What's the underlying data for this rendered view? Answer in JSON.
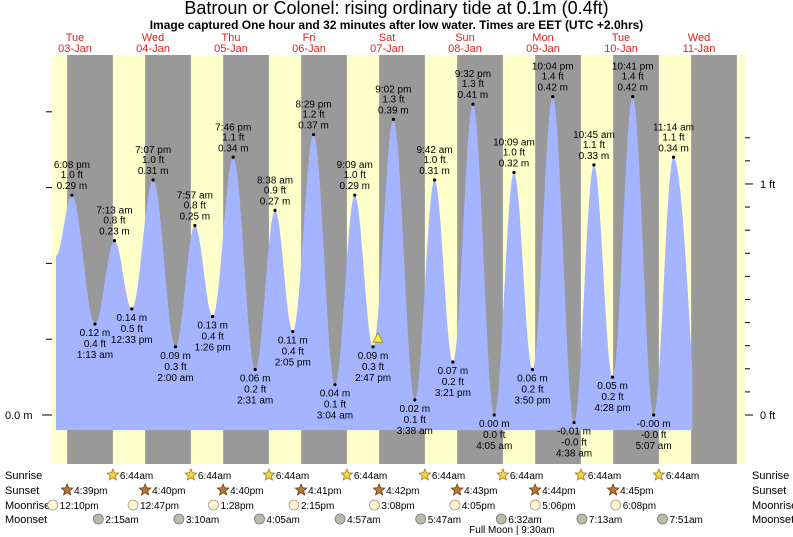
{
  "title": "Batroun or Colonel: rising  ordinary tide at 0.1m (0.4ft)",
  "subtitle": "Image captured One hour and 32 minutes after low water. Times are EET (UTC +2.0hrs)",
  "colors": {
    "day": "#ffffcc",
    "night": "#999999",
    "tide_fill": "#a4b4ff",
    "day_label": "#e0201a"
  },
  "chart_data": {
    "type": "area",
    "title": "Batroun or Colonel: rising  ordinary tide at 0.1m (0.4ft)",
    "ylabel_left": [
      "0.0 m"
    ],
    "ylabel_right": [
      "0 ft",
      "1 ft"
    ],
    "days": [
      {
        "weekday": "Tue",
        "date": "03-Jan"
      },
      {
        "weekday": "Wed",
        "date": "04-Jan"
      },
      {
        "weekday": "Thu",
        "date": "05-Jan"
      },
      {
        "weekday": "Fri",
        "date": "06-Jan"
      },
      {
        "weekday": "Sat",
        "date": "07-Jan"
      },
      {
        "weekday": "Sun",
        "date": "08-Jan"
      },
      {
        "weekday": "Mon",
        "date": "09-Jan"
      },
      {
        "weekday": "Tue",
        "date": "10-Jan"
      },
      {
        "weekday": "Wed",
        "date": "11-Jan"
      }
    ],
    "tides": [
      {
        "type": "high",
        "time": "6:08 pm",
        "ft": "1.0 ft",
        "m": "0.29 m",
        "h": 18.13,
        "value_m": 0.29
      },
      {
        "type": "low",
        "time": "1:13 am",
        "ft": "0.4 ft",
        "m": "0.12 m",
        "h": 25.22,
        "value_m": 0.12
      },
      {
        "type": "high",
        "time": "7:13 am",
        "ft": "0.8 ft",
        "m": "0.23 m",
        "h": 31.22,
        "value_m": 0.23
      },
      {
        "type": "low",
        "time": "12:33 pm",
        "ft": "0.5 ft",
        "m": "0.14 m",
        "h": 36.55,
        "value_m": 0.14
      },
      {
        "type": "high",
        "time": "7:07 pm",
        "ft": "1.0 ft",
        "m": "0.31 m",
        "h": 43.12,
        "value_m": 0.31
      },
      {
        "type": "low",
        "time": "2:00 am",
        "ft": "0.3 ft",
        "m": "0.09 m",
        "h": 50.0,
        "value_m": 0.09
      },
      {
        "type": "high",
        "time": "7:57 am",
        "ft": "0.8 ft",
        "m": "0.25 m",
        "h": 55.95,
        "value_m": 0.25
      },
      {
        "type": "low",
        "time": "1:26 pm",
        "ft": "0.4 ft",
        "m": "0.13 m",
        "h": 61.43,
        "value_m": 0.13
      },
      {
        "type": "high",
        "time": "7:46 pm",
        "ft": "1.1 ft",
        "m": "0.34 m",
        "h": 67.77,
        "value_m": 0.34
      },
      {
        "type": "low",
        "time": "2:31 am",
        "ft": "0.2 ft",
        "m": "0.06 m",
        "h": 74.52,
        "value_m": 0.06
      },
      {
        "type": "high",
        "time": "8:38 am",
        "ft": "0.9 ft",
        "m": "0.27 m",
        "h": 80.63,
        "value_m": 0.27
      },
      {
        "type": "low",
        "time": "2:05 pm",
        "ft": "0.4 ft",
        "m": "0.11 m",
        "h": 86.08,
        "value_m": 0.11
      },
      {
        "type": "high",
        "time": "8:29 pm",
        "ft": "1.2 ft",
        "m": "0.37 m",
        "h": 92.48,
        "value_m": 0.37
      },
      {
        "type": "low",
        "time": "3:04 am",
        "ft": "0.1 ft",
        "m": "0.04 m",
        "h": 99.07,
        "value_m": 0.04
      },
      {
        "type": "high",
        "time": "9:09 am",
        "ft": "1.0 ft",
        "m": "0.29 m",
        "h": 105.15,
        "value_m": 0.29
      },
      {
        "type": "low",
        "time": "2:47 pm",
        "ft": "0.3 ft",
        "m": "0.09 m",
        "h": 110.78,
        "value_m": 0.09
      },
      {
        "type": "high",
        "time": "9:02 pm",
        "ft": "1.3 ft",
        "m": "0.39 m",
        "h": 117.03,
        "value_m": 0.39
      },
      {
        "type": "low",
        "time": "3:38 am",
        "ft": "0.1 ft",
        "m": "0.02 m",
        "h": 123.63,
        "value_m": 0.02
      },
      {
        "type": "high",
        "time": "9:42 am",
        "ft": "1.0 ft",
        "m": "0.31 m",
        "h": 129.7,
        "value_m": 0.31
      },
      {
        "type": "low",
        "time": "3:21 pm",
        "ft": "0.2 ft",
        "m": "0.07 m",
        "h": 135.35,
        "value_m": 0.07
      },
      {
        "type": "high",
        "time": "9:32 pm",
        "ft": "1.3 ft",
        "m": "0.41 m",
        "h": 141.53,
        "value_m": 0.41
      },
      {
        "type": "low",
        "time": "4:05 am",
        "ft": "0.0 ft",
        "m": "0.00 m",
        "h": 148.08,
        "value_m": 0.0
      },
      {
        "type": "high",
        "time": "10:09 am",
        "ft": "1.0 ft",
        "m": "0.32 m",
        "h": 154.15,
        "value_m": 0.32
      },
      {
        "type": "low",
        "time": "3:50 pm",
        "ft": "0.2 ft",
        "m": "0.06 m",
        "h": 159.83,
        "value_m": 0.06
      },
      {
        "type": "high",
        "time": "10:04 pm",
        "ft": "1.4 ft",
        "m": "0.42 m",
        "h": 166.07,
        "value_m": 0.42
      },
      {
        "type": "low",
        "time": "4:38 am",
        "ft": "-0.0 ft",
        "m": "-0.01 m",
        "h": 172.63,
        "value_m": -0.01
      },
      {
        "type": "high",
        "time": "10:45 am",
        "ft": "1.1 ft",
        "m": "0.33 m",
        "h": 178.75,
        "value_m": 0.33
      },
      {
        "type": "low",
        "time": "4:28 pm",
        "ft": "0.2 ft",
        "m": "0.05 m",
        "h": 184.47,
        "value_m": 0.05
      },
      {
        "type": "high",
        "time": "10:41 pm",
        "ft": "1.4 ft",
        "m": "0.42 m",
        "h": 190.68,
        "value_m": 0.42
      },
      {
        "type": "low",
        "time": "5:07 am",
        "ft": "-0.0 ft",
        "m": "-0.00 m",
        "h": 197.12,
        "value_m": 0.0
      },
      {
        "type": "high",
        "time": "11:14 am",
        "ft": "1.1 ft",
        "m": "0.34 m",
        "h": 203.23,
        "value_m": 0.34
      }
    ],
    "current": {
      "h": 112.3,
      "value_m": 0.1
    }
  },
  "rows": {
    "sunrise_label": "Sunrise",
    "sunset_label": "Sunset",
    "moonrise_label": "Moonrise",
    "moonset_label": "Moonset",
    "sunrise": [
      "6:44am",
      "6:44am",
      "6:44am",
      "6:44am",
      "6:44am",
      "6:44am",
      "6:44am",
      "6:44am"
    ],
    "sunset": [
      "4:39pm",
      "4:40pm",
      "4:40pm",
      "4:41pm",
      "4:42pm",
      "4:43pm",
      "4:44pm",
      "4:45pm"
    ],
    "moonrise": [
      "12:10pm",
      "12:47pm",
      "1:28pm",
      "2:15pm",
      "3:08pm",
      "4:05pm",
      "5:06pm",
      "6:08pm"
    ],
    "moonset": [
      "2:15am",
      "3:10am",
      "4:05am",
      "4:57am",
      "5:47am",
      "6:32am",
      "7:13am",
      "7:51am"
    ],
    "full_moon": "Full Moon | 9:30am"
  }
}
